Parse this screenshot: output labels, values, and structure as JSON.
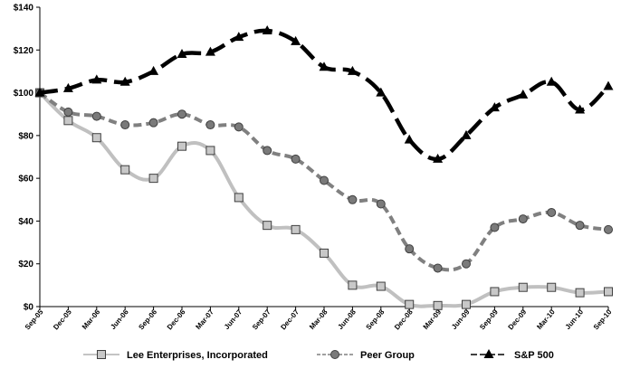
{
  "chart_data": {
    "type": "line",
    "title": "",
    "xlabel": "",
    "ylabel": "",
    "ylim": [
      0,
      140
    ],
    "yticks": [
      0,
      20,
      40,
      60,
      80,
      100,
      120,
      140
    ],
    "ytick_labels": [
      "$0",
      "$20",
      "$40",
      "$60",
      "$80",
      "$100",
      "$120",
      "$140"
    ],
    "categories": [
      "Sep-05",
      "Dec-05",
      "Mar-06",
      "Jun-06",
      "Sep-06",
      "Dec-06",
      "Mar-07",
      "Jun-07",
      "Sep-07",
      "Dec-07",
      "Mar-08",
      "Jun-08",
      "Sep-08",
      "Dec-08",
      "Mar-09",
      "Jun-09",
      "Sep-09",
      "Dec-09",
      "Mar-10",
      "Jun-10",
      "Sep-10"
    ],
    "legend_position": "bottom",
    "series": [
      {
        "name": "Lee Enterprises, Incorporated",
        "color": "#c0c0c0",
        "marker": "square",
        "values": [
          100,
          87,
          79,
          64,
          60,
          75,
          73,
          51,
          38,
          36,
          25,
          10,
          9.5,
          1,
          0.5,
          1,
          7,
          9,
          9,
          6.5,
          7
        ]
      },
      {
        "name": "Peer Group",
        "color": "#808080",
        "marker": "circle",
        "values": [
          100,
          91,
          89,
          85,
          86,
          90,
          85,
          84,
          73,
          69,
          59,
          50,
          48,
          27,
          18,
          20,
          37,
          41,
          44,
          38,
          36
        ]
      },
      {
        "name": "S&P 500",
        "color": "#000000",
        "marker": "triangle",
        "values": [
          100,
          102,
          106,
          105,
          110,
          118,
          119,
          126,
          129,
          124,
          112,
          110,
          100,
          78,
          69,
          80,
          93,
          99,
          105,
          92,
          103
        ]
      }
    ]
  }
}
